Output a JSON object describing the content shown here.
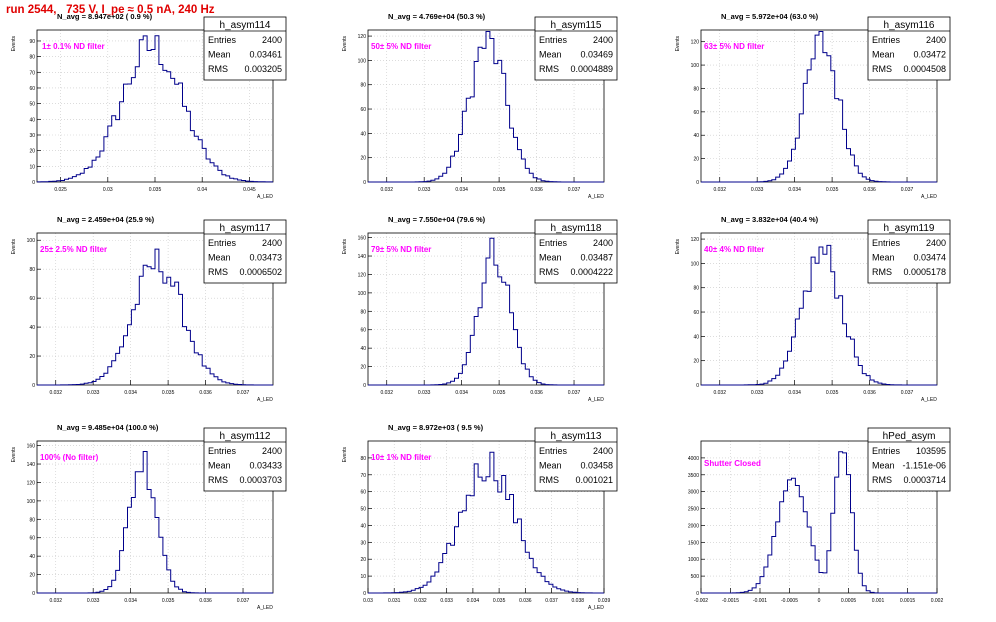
{
  "page_title": "run 2544,   735 V, I_pe ≈ 0.5 nA, 240 Hz",
  "colors": {
    "line": "#00008b",
    "axis": "#000000",
    "grid": "#c8c8c8",
    "label": "#ff00ff",
    "title": "#e00000"
  },
  "stat_labels": {
    "entries": "Entries",
    "mean": "Mean",
    "rms": "RMS"
  },
  "chart_data": [
    {
      "type": "histogram",
      "name": "h_asym114",
      "xlabel": "A_LED",
      "ylabel": "Events",
      "navg": "N_avg = 8.947e+02 ( 0.9 %)",
      "filter": "1± 0.1% ND filter",
      "entries": "2400",
      "mean": "0.03461",
      "rms": "0.003205",
      "xlim": [
        0.0225,
        0.0475
      ],
      "ylim": [
        0,
        97
      ],
      "xticks": [
        "0.025",
        "0.03",
        "0.035",
        "0.04",
        "0.045"
      ],
      "yticks": [
        "0",
        "10",
        "20",
        "30",
        "40",
        "50",
        "60",
        "70",
        "80",
        "90"
      ],
      "peak_x": 0.0347,
      "sigma": 0.0032,
      "peak_y": 90
    },
    {
      "type": "histogram",
      "name": "h_asym115",
      "xlabel": "A_LED",
      "ylabel": "Events",
      "navg": "N_avg = 4.769e+04 (50.3 %)",
      "filter": "50± 5% ND filter",
      "entries": "2400",
      "mean": "0.03469",
      "rms": "0.0004889",
      "xlim": [
        0.0315,
        0.0378
      ],
      "ylim": [
        0,
        125
      ],
      "xticks": [
        "0.032",
        "0.033",
        "0.034",
        "0.035",
        "0.036",
        "0.037"
      ],
      "yticks": [
        "0",
        "20",
        "40",
        "60",
        "80",
        "100",
        "120"
      ],
      "peak_x": 0.03469,
      "sigma": 0.00049,
      "peak_y": 120
    },
    {
      "type": "histogram",
      "name": "h_asym116",
      "xlabel": "A_LED",
      "ylabel": "Events",
      "navg": "N_avg = 5.972e+04 (63.0 %)",
      "filter": "63± 5% ND filter",
      "entries": "2400",
      "mean": "0.03472",
      "rms": "0.0004508",
      "xlim": [
        0.0315,
        0.0378
      ],
      "ylim": [
        0,
        130
      ],
      "xticks": [
        "0.032",
        "0.033",
        "0.034",
        "0.035",
        "0.036",
        "0.037"
      ],
      "yticks": [
        "0",
        "20",
        "40",
        "60",
        "80",
        "100",
        "120"
      ],
      "peak_x": 0.03472,
      "sigma": 0.00045,
      "peak_y": 124
    },
    {
      "type": "histogram",
      "name": "h_asym117",
      "xlabel": "A_LED",
      "ylabel": "Events",
      "navg": "N_avg = 2.459e+04 (25.9 %)",
      "filter": "25± 2.5% ND filter",
      "entries": "2400",
      "mean": "0.03473",
      "rms": "0.0006502",
      "xlim": [
        0.0315,
        0.0378
      ],
      "ylim": [
        0,
        105
      ],
      "xticks": [
        "0.032",
        "0.033",
        "0.034",
        "0.035",
        "0.036",
        "0.037"
      ],
      "yticks": [
        "0",
        "20",
        "40",
        "60",
        "80",
        "100"
      ],
      "peak_x": 0.03473,
      "sigma": 0.00065,
      "peak_y": 88
    },
    {
      "type": "histogram",
      "name": "h_asym118",
      "xlabel": "A_LED",
      "ylabel": "Events",
      "navg": "N_avg = 7.550e+04 (79.6 %)",
      "filter": "79± 5% ND filter",
      "entries": "2400",
      "mean": "0.03487",
      "rms": "0.0004222",
      "xlim": [
        0.0315,
        0.0378
      ],
      "ylim": [
        0,
        165
      ],
      "xticks": [
        "0.032",
        "0.033",
        "0.034",
        "0.035",
        "0.036",
        "0.037"
      ],
      "yticks": [
        "0",
        "20",
        "40",
        "60",
        "80",
        "100",
        "120",
        "140",
        "160"
      ],
      "peak_x": 0.03487,
      "sigma": 0.00042,
      "peak_y": 150
    },
    {
      "type": "histogram",
      "name": "h_asym119",
      "xlabel": "A_LED",
      "ylabel": "Events",
      "navg": "N_avg = 3.832e+04 (40.4 %)",
      "filter": "40± 4% ND filter",
      "entries": "2400",
      "mean": "0.03474",
      "rms": "0.0005178",
      "xlim": [
        0.0315,
        0.0378
      ],
      "ylim": [
        0,
        125
      ],
      "xticks": [
        "0.032",
        "0.033",
        "0.034",
        "0.035",
        "0.036",
        "0.037"
      ],
      "yticks": [
        "0",
        "20",
        "40",
        "60",
        "80",
        "100",
        "120"
      ],
      "peak_x": 0.03474,
      "sigma": 0.00052,
      "peak_y": 113
    },
    {
      "type": "histogram",
      "name": "h_asym112",
      "xlabel": "A_LED",
      "ylabel": "Events",
      "navg": "N_avg = 9.485e+04 (100.0 %)",
      "filter": "100% (No filter)",
      "entries": "2400",
      "mean": "0.03433",
      "rms": "0.0003703",
      "xlim": [
        0.0315,
        0.0378
      ],
      "ylim": [
        0,
        165
      ],
      "xticks": [
        "0.032",
        "0.033",
        "0.034",
        "0.035",
        "0.036",
        "0.037"
      ],
      "yticks": [
        "0",
        "20",
        "40",
        "60",
        "80",
        "100",
        "120",
        "140",
        "160"
      ],
      "peak_x": 0.03433,
      "sigma": 0.00037,
      "peak_y": 150
    },
    {
      "type": "histogram",
      "name": "h_asym113",
      "xlabel": "A_LED",
      "ylabel": "Events",
      "navg": "N_avg = 8.972e+03 ( 9.5 %)",
      "filter": "10± 1% ND filter",
      "entries": "2400",
      "mean": "0.03458",
      "rms": "0.001021",
      "xlim": [
        0.03,
        0.039
      ],
      "ylim": [
        0,
        90
      ],
      "xticks": [
        "0.03",
        "0.031",
        "0.032",
        "0.033",
        "0.034",
        "0.035",
        "0.036",
        "0.037",
        "0.038",
        "0.039"
      ],
      "yticks": [
        "0",
        "10",
        "20",
        "30",
        "40",
        "50",
        "60",
        "70",
        "80"
      ],
      "peak_x": 0.03458,
      "sigma": 0.00102,
      "peak_y": 80
    },
    {
      "type": "histogram",
      "name": "hPed_asym",
      "xlabel": "",
      "ylabel": "",
      "navg": "",
      "filter": "Shutter Closed",
      "entries": "103595",
      "mean": "-1.151e-06",
      "rms": "0.0003714",
      "xlim": [
        -0.002,
        0.002
      ],
      "ylim": [
        0,
        4500
      ],
      "xticks": [
        "-0.002",
        "-0.0015",
        "-0.001",
        "-0.0005",
        "0",
        "0.0005",
        "0.001",
        "0.0015",
        "0.002"
      ],
      "yticks": [
        "0",
        "500",
        "1000",
        "1500",
        "2000",
        "2500",
        "3000",
        "3500",
        "4000"
      ],
      "peak_x": 0.0004,
      "sigma": 0.00015,
      "peak_y": 4300
    }
  ]
}
